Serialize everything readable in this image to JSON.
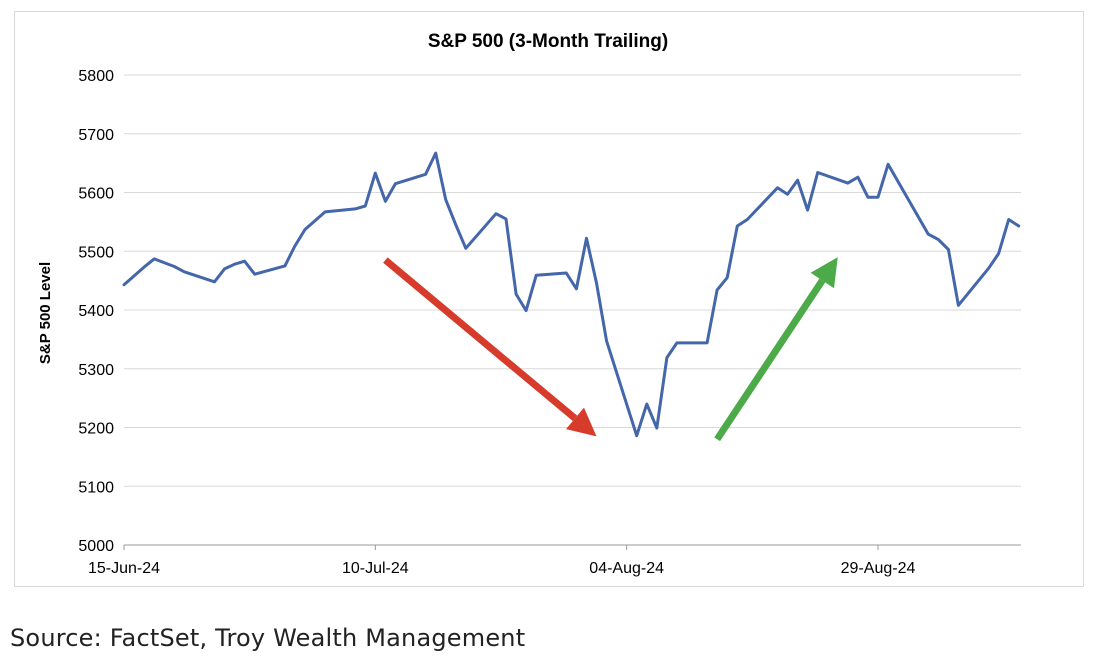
{
  "chart_data": {
    "type": "line",
    "title": "S&P 500 (3-Month Trailing)",
    "xlabel": "",
    "ylabel": "S&P 500 Level",
    "ylim": [
      5000,
      5800
    ],
    "y_ticks": [
      5000,
      5100,
      5200,
      5300,
      5400,
      5500,
      5600,
      5700,
      5800
    ],
    "x_start": "2024-06-15",
    "x_end": "2024-09-09",
    "x_tick_labels": [
      {
        "date": "2024-06-15",
        "label": "15-Jun-24"
      },
      {
        "date": "2024-07-10",
        "label": "10-Jul-24"
      },
      {
        "date": "2024-08-04",
        "label": "04-Aug-24"
      },
      {
        "date": "2024-08-29",
        "label": "29-Aug-24"
      }
    ],
    "grid": "horizontal",
    "legend": "none",
    "series": [
      {
        "color": "#4466aa",
        "points": [
          [
            "2024-06-15",
            5443
          ],
          [
            "2024-06-17",
            5473
          ],
          [
            "2024-06-18",
            5487
          ],
          [
            "2024-06-20",
            5474
          ],
          [
            "2024-06-21",
            5465
          ],
          [
            "2024-06-24",
            5448
          ],
          [
            "2024-06-25",
            5470
          ],
          [
            "2024-06-26",
            5478
          ],
          [
            "2024-06-27",
            5483
          ],
          [
            "2024-06-28",
            5461
          ],
          [
            "2024-07-01",
            5475
          ],
          [
            "2024-07-02",
            5509
          ],
          [
            "2024-07-03",
            5537
          ],
          [
            "2024-07-05",
            5567
          ],
          [
            "2024-07-08",
            5572
          ],
          [
            "2024-07-09",
            5577
          ],
          [
            "2024-07-10",
            5633
          ],
          [
            "2024-07-11",
            5585
          ],
          [
            "2024-07-12",
            5615
          ],
          [
            "2024-07-15",
            5631
          ],
          [
            "2024-07-16",
            5667
          ],
          [
            "2024-07-17",
            5588
          ],
          [
            "2024-07-18",
            5545
          ],
          [
            "2024-07-19",
            5505
          ],
          [
            "2024-07-22",
            5564
          ],
          [
            "2024-07-23",
            5555
          ],
          [
            "2024-07-24",
            5427
          ],
          [
            "2024-07-25",
            5399
          ],
          [
            "2024-07-26",
            5459
          ],
          [
            "2024-07-29",
            5463
          ],
          [
            "2024-07-30",
            5436
          ],
          [
            "2024-07-31",
            5522
          ],
          [
            "2024-08-01",
            5446
          ],
          [
            "2024-08-02",
            5347
          ],
          [
            "2024-08-05",
            5186
          ],
          [
            "2024-08-06",
            5240
          ],
          [
            "2024-08-07",
            5199
          ],
          [
            "2024-08-08",
            5319
          ],
          [
            "2024-08-09",
            5344
          ],
          [
            "2024-08-12",
            5344
          ],
          [
            "2024-08-13",
            5434
          ],
          [
            "2024-08-14",
            5455
          ],
          [
            "2024-08-15",
            5543
          ],
          [
            "2024-08-16",
            5554
          ],
          [
            "2024-08-19",
            5608
          ],
          [
            "2024-08-20",
            5597
          ],
          [
            "2024-08-21",
            5621
          ],
          [
            "2024-08-22",
            5570
          ],
          [
            "2024-08-23",
            5634
          ],
          [
            "2024-08-26",
            5616
          ],
          [
            "2024-08-27",
            5626
          ],
          [
            "2024-08-28",
            5592
          ],
          [
            "2024-08-29",
            5592
          ],
          [
            "2024-08-30",
            5648
          ],
          [
            "2024-09-03",
            5529
          ],
          [
            "2024-09-04",
            5520
          ],
          [
            "2024-09-05",
            5503
          ],
          [
            "2024-09-06",
            5408
          ],
          [
            "2024-09-09",
            5471
          ],
          [
            "2024-09-10",
            5496
          ],
          [
            "2024-09-11",
            5554
          ],
          [
            "2024-09-12",
            5543
          ]
        ]
      }
    ],
    "arrows": [
      {
        "color": "#d63b2c",
        "from": [
          "2024-07-11",
          5485
        ],
        "to": [
          "2024-08-01",
          5185
        ]
      },
      {
        "color": "#4caa48",
        "from": [
          "2024-08-13",
          5180
        ],
        "to": [
          "2024-08-25",
          5490
        ]
      }
    ],
    "x_end_axis": "2024-09-12"
  },
  "source_text": "Source: FactSet, Troy Wealth Management"
}
